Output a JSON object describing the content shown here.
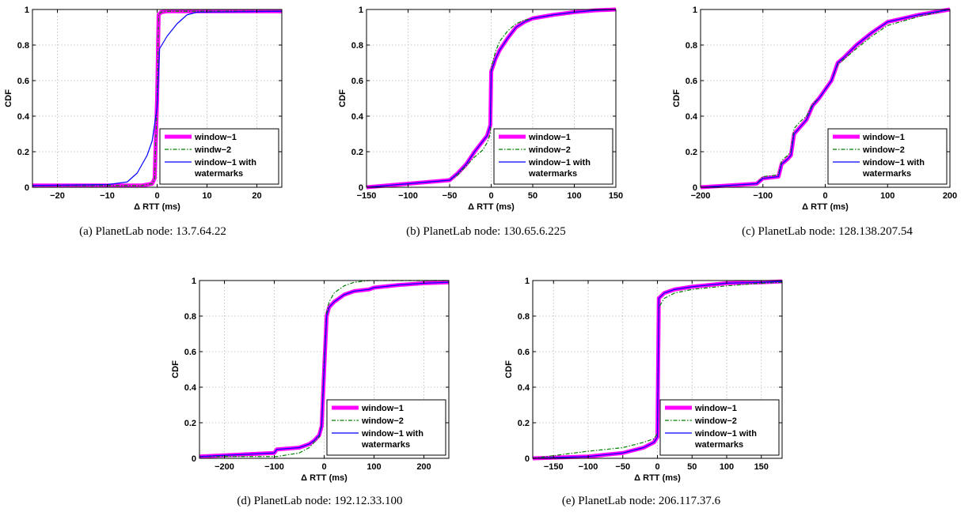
{
  "legend_labels": {
    "default": [
      "window−1",
      "window−2",
      "window−1 with",
      "watermarks"
    ],
    "a": [
      "window−1",
      "windw−2",
      "window−1 with",
      "watermarks"
    ]
  },
  "colors": {
    "window1": "#ff00ff",
    "window2": "#008000",
    "watermarks": "#0000ff"
  },
  "chart_data": [
    {
      "id": "a",
      "type": "line",
      "caption": "(a) PlanetLab node: 13.7.64.22",
      "xlabel": "Δ RTT (ms)",
      "ylabel": "CDF",
      "xlim": [
        -25,
        25
      ],
      "ylim": [
        0,
        1
      ],
      "xticks": [
        -20,
        -10,
        0,
        10,
        20
      ],
      "yticks": [
        0,
        0.2,
        0.4,
        0.6,
        0.8,
        1
      ],
      "grid": true,
      "legend_position": "lower-right",
      "series": [
        {
          "name": "window−1",
          "x": [
            -25,
            -3,
            -1,
            -0.5,
            0,
            0.3,
            0.8,
            2,
            25
          ],
          "y": [
            0.01,
            0.01,
            0.02,
            0.05,
            0.5,
            0.97,
            0.985,
            0.99,
            0.99
          ]
        },
        {
          "name": "windw−2",
          "x": [
            -25,
            -3,
            -1,
            -0.5,
            0,
            0.3,
            0.8,
            2,
            25
          ],
          "y": [
            0.01,
            0.01,
            0.02,
            0.05,
            0.5,
            0.97,
            0.985,
            0.99,
            0.99
          ]
        },
        {
          "name": "window−1 with watermarks",
          "x": [
            -25,
            -10,
            -6,
            -4,
            -2,
            -1,
            0,
            0.5,
            2,
            4,
            6,
            8,
            25
          ],
          "y": [
            0.01,
            0.015,
            0.03,
            0.08,
            0.18,
            0.26,
            0.45,
            0.78,
            0.85,
            0.92,
            0.97,
            0.985,
            0.99
          ]
        }
      ]
    },
    {
      "id": "b",
      "type": "line",
      "caption": "(b) PlanetLab node: 130.65.6.225",
      "xlabel": "Δ RTT (ms)",
      "ylabel": "CDF",
      "xlim": [
        -150,
        150
      ],
      "ylim": [
        0,
        1
      ],
      "xticks": [
        -150,
        -100,
        -50,
        0,
        50,
        100,
        150
      ],
      "yticks": [
        0,
        0.2,
        0.4,
        0.6,
        0.8,
        1
      ],
      "grid": true,
      "legend_position": "lower-right",
      "series": [
        {
          "name": "window−1",
          "x": [
            -150,
            -100,
            -50,
            -40,
            -30,
            -20,
            -10,
            -5,
            -1,
            0,
            5,
            10,
            20,
            30,
            40,
            50,
            75,
            100,
            125,
            150
          ],
          "y": [
            0,
            0.02,
            0.04,
            0.08,
            0.13,
            0.2,
            0.26,
            0.29,
            0.35,
            0.65,
            0.72,
            0.77,
            0.84,
            0.9,
            0.93,
            0.95,
            0.97,
            0.985,
            0.995,
            1
          ]
        },
        {
          "name": "window−2",
          "x": [
            -150,
            -100,
            -50,
            -40,
            -30,
            -20,
            -10,
            -5,
            -1,
            0,
            5,
            10,
            20,
            30,
            40,
            50,
            75,
            100,
            125,
            150
          ],
          "y": [
            0,
            0.02,
            0.04,
            0.07,
            0.12,
            0.17,
            0.21,
            0.25,
            0.3,
            0.67,
            0.76,
            0.82,
            0.88,
            0.92,
            0.94,
            0.95,
            0.97,
            0.985,
            0.995,
            1
          ]
        },
        {
          "name": "window−1 with watermarks",
          "x": [
            -150,
            -100,
            -50,
            -40,
            -30,
            -20,
            -10,
            -5,
            -1,
            0,
            5,
            10,
            20,
            30,
            40,
            50,
            75,
            100,
            125,
            150
          ],
          "y": [
            0,
            0.02,
            0.04,
            0.08,
            0.13,
            0.2,
            0.26,
            0.29,
            0.35,
            0.65,
            0.72,
            0.77,
            0.84,
            0.9,
            0.93,
            0.95,
            0.97,
            0.985,
            0.995,
            1
          ]
        }
      ]
    },
    {
      "id": "c",
      "type": "line",
      "caption": "(c) PlanetLab node: 128.138.207.54",
      "xlabel": "Δ RTT (ms)",
      "ylabel": "CDF",
      "xlim": [
        -200,
        200
      ],
      "ylim": [
        0,
        1
      ],
      "xticks": [
        -200,
        -100,
        0,
        100,
        200
      ],
      "yticks": [
        0,
        0.2,
        0.4,
        0.6,
        0.8,
        1
      ],
      "grid": true,
      "legend_position": "lower-right",
      "series": [
        {
          "name": "window−1",
          "x": [
            -200,
            -110,
            -100,
            -75,
            -70,
            -60,
            -55,
            -50,
            -40,
            -30,
            -20,
            -10,
            0,
            10,
            20,
            30,
            50,
            75,
            100,
            150,
            200
          ],
          "y": [
            0,
            0.02,
            0.05,
            0.06,
            0.13,
            0.16,
            0.18,
            0.3,
            0.34,
            0.38,
            0.46,
            0.5,
            0.55,
            0.6,
            0.7,
            0.73,
            0.8,
            0.87,
            0.93,
            0.97,
            1
          ]
        },
        {
          "name": "window−2",
          "x": [
            -200,
            -110,
            -100,
            -75,
            -70,
            -60,
            -55,
            -50,
            -40,
            -30,
            -20,
            -10,
            0,
            10,
            20,
            30,
            50,
            75,
            100,
            150,
            200
          ],
          "y": [
            0,
            0.02,
            0.06,
            0.07,
            0.15,
            0.18,
            0.2,
            0.33,
            0.37,
            0.4,
            0.47,
            0.5,
            0.55,
            0.6,
            0.69,
            0.72,
            0.78,
            0.85,
            0.91,
            0.96,
            1
          ]
        },
        {
          "name": "window−1 with watermarks",
          "x": [
            -200,
            -110,
            -100,
            -75,
            -70,
            -60,
            -55,
            -50,
            -40,
            -30,
            -20,
            -10,
            0,
            10,
            20,
            30,
            50,
            75,
            100,
            150,
            200
          ],
          "y": [
            0,
            0.02,
            0.05,
            0.06,
            0.13,
            0.16,
            0.18,
            0.3,
            0.34,
            0.38,
            0.46,
            0.5,
            0.55,
            0.6,
            0.7,
            0.73,
            0.8,
            0.87,
            0.93,
            0.97,
            1
          ]
        }
      ]
    },
    {
      "id": "d",
      "type": "line",
      "caption": "(d) PlanetLab node: 192.12.33.100",
      "xlabel": "Δ RTT (ms)",
      "ylabel": "CDF",
      "xlim": [
        -250,
        250
      ],
      "ylim": [
        0,
        1
      ],
      "xticks": [
        -200,
        -100,
        0,
        100,
        200
      ],
      "yticks": [
        0,
        0.2,
        0.4,
        0.6,
        0.8,
        1
      ],
      "grid": true,
      "legend_position": "lower-right",
      "series": [
        {
          "name": "window−1",
          "x": [
            -250,
            -100,
            -95,
            -50,
            -30,
            -20,
            -10,
            -5,
            0,
            5,
            10,
            20,
            40,
            60,
            90,
            100,
            150,
            200,
            250
          ],
          "y": [
            0.01,
            0.03,
            0.05,
            0.06,
            0.08,
            0.1,
            0.13,
            0.18,
            0.5,
            0.8,
            0.85,
            0.88,
            0.92,
            0.94,
            0.95,
            0.96,
            0.975,
            0.985,
            0.99
          ]
        },
        {
          "name": "window−2",
          "x": [
            -250,
            -100,
            -95,
            -50,
            -30,
            -20,
            -10,
            -5,
            0,
            5,
            10,
            20,
            40,
            60,
            90,
            100,
            150,
            200,
            250
          ],
          "y": [
            0.01,
            0.01,
            0.01,
            0.03,
            0.06,
            0.09,
            0.12,
            0.2,
            0.55,
            0.82,
            0.88,
            0.93,
            0.97,
            0.99,
            1,
            1,
            1,
            1,
            1
          ]
        },
        {
          "name": "window−1 with watermarks",
          "x": [
            -250,
            -100,
            -95,
            -50,
            -30,
            -20,
            -10,
            -5,
            0,
            5,
            10,
            20,
            40,
            60,
            90,
            100,
            150,
            200,
            250
          ],
          "y": [
            0.01,
            0.03,
            0.05,
            0.06,
            0.08,
            0.1,
            0.13,
            0.18,
            0.5,
            0.8,
            0.85,
            0.88,
            0.92,
            0.94,
            0.95,
            0.96,
            0.975,
            0.985,
            0.99
          ]
        }
      ]
    },
    {
      "id": "e",
      "type": "line",
      "caption": "(e) PlanetLab node: 206.117.37.6",
      "xlabel": "Δ RTT (ms)",
      "ylabel": "CDF",
      "xlim": [
        -180,
        180
      ],
      "ylim": [
        0,
        1
      ],
      "xticks": [
        -150,
        -100,
        -50,
        0,
        50,
        100,
        150
      ],
      "yticks": [
        0,
        0.2,
        0.4,
        0.6,
        0.8,
        1
      ],
      "grid": true,
      "legend_position": "lower-right",
      "series": [
        {
          "name": "window−1",
          "x": [
            -180,
            -100,
            -50,
            -20,
            -5,
            0,
            2,
            10,
            25,
            50,
            75,
            100,
            150,
            180
          ],
          "y": [
            0,
            0.01,
            0.03,
            0.06,
            0.09,
            0.12,
            0.9,
            0.93,
            0.95,
            0.965,
            0.975,
            0.985,
            0.99,
            0.995
          ]
        },
        {
          "name": "window−2",
          "x": [
            -180,
            -100,
            -50,
            -20,
            -5,
            0,
            2,
            10,
            25,
            50,
            75,
            100,
            150,
            180
          ],
          "y": [
            0,
            0.04,
            0.06,
            0.09,
            0.11,
            0.14,
            0.85,
            0.9,
            0.93,
            0.95,
            0.96,
            0.97,
            0.985,
            0.99
          ]
        },
        {
          "name": "window−1 with watermarks",
          "x": [
            -180,
            -100,
            -50,
            -20,
            -5,
            0,
            2,
            10,
            25,
            50,
            75,
            100,
            150,
            180
          ],
          "y": [
            0,
            0.01,
            0.03,
            0.06,
            0.09,
            0.12,
            0.9,
            0.93,
            0.95,
            0.965,
            0.975,
            0.985,
            0.99,
            0.995
          ]
        }
      ]
    }
  ]
}
